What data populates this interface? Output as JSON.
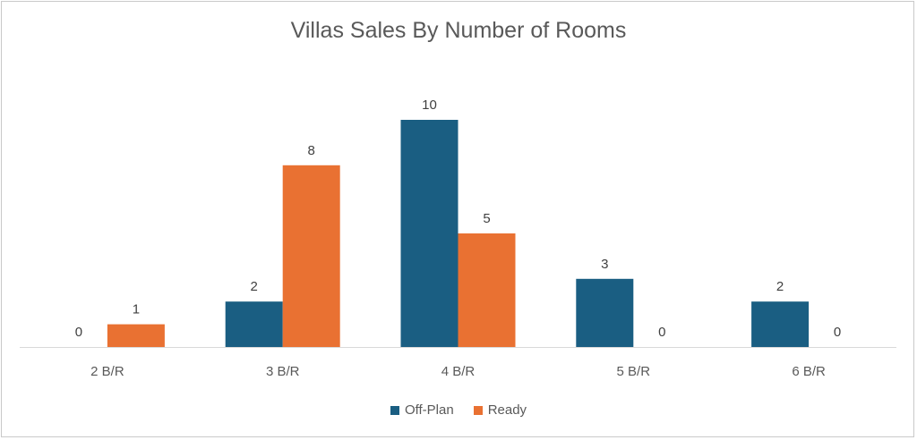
{
  "chart_data": {
    "type": "bar",
    "title": "Villas Sales By Number of Rooms",
    "categories": [
      "2 B/R",
      "3 B/R",
      "4 B/R",
      "5 B/R",
      "6 B/R"
    ],
    "series": [
      {
        "name": "Off-Plan",
        "values": [
          0,
          2,
          10,
          3,
          2
        ],
        "color": "#1a5e82"
      },
      {
        "name": "Ready",
        "values": [
          1,
          8,
          5,
          0,
          0
        ],
        "color": "#e97132"
      }
    ],
    "ylim": [
      0,
      10
    ],
    "grid": false,
    "data_labels": true,
    "legend_position": "bottom"
  }
}
